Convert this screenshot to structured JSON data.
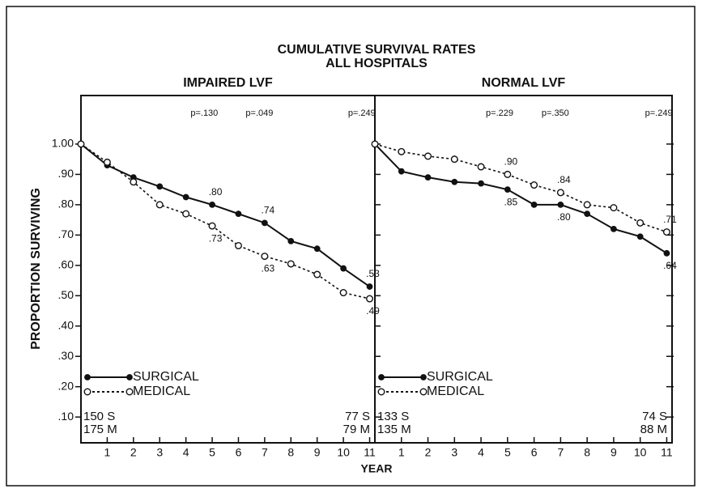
{
  "title": "CUMULATIVE SURVIVAL RATES",
  "subtitle": "ALL HOSPITALS",
  "ylabel": "PROPORTION SURVIVING",
  "xlabel": "YEAR",
  "chart_data": [
    {
      "type": "line",
      "title": "IMPAIRED LVF",
      "x": [
        0,
        1,
        2,
        3,
        4,
        5,
        6,
        7,
        8,
        9,
        10,
        11
      ],
      "xlim": [
        0,
        11.2
      ],
      "xticks": [
        1,
        2,
        3,
        4,
        5,
        6,
        7,
        8,
        9,
        10,
        11
      ],
      "ylim": [
        0.015,
        1.16
      ],
      "yticks": [
        {
          "value": 1.0,
          "label": "1.00"
        },
        {
          "value": 0.9,
          "label": ".90"
        },
        {
          "value": 0.8,
          "label": ".80"
        },
        {
          "value": 0.7,
          "label": ".70"
        },
        {
          "value": 0.6,
          "label": ".60"
        },
        {
          "value": 0.5,
          "label": ".50"
        },
        {
          "value": 0.4,
          "label": ".40"
        },
        {
          "value": 0.3,
          "label": ".30"
        },
        {
          "value": 0.2,
          "label": ".20"
        },
        {
          "value": 0.1,
          "label": ".10"
        }
      ],
      "series": [
        {
          "name": "SURGICAL",
          "color": "#111111",
          "values": [
            1.0,
            0.93,
            0.89,
            0.86,
            0.825,
            0.8,
            0.77,
            0.74,
            0.68,
            0.655,
            0.59,
            0.53
          ],
          "value_labels": [
            null,
            null,
            null,
            null,
            null,
            ".80",
            null,
            ".74",
            null,
            null,
            null,
            ".53"
          ]
        },
        {
          "name": "MEDICAL",
          "color": "#111111",
          "values": [
            1.0,
            0.94,
            0.875,
            0.8,
            0.77,
            0.73,
            0.665,
            0.63,
            0.605,
            0.57,
            0.51,
            0.49
          ],
          "value_labels": [
            null,
            null,
            null,
            null,
            null,
            ".73",
            null,
            ".63",
            null,
            null,
            null,
            ".49"
          ]
        }
      ],
      "annotations": [
        "p=.130",
        "p=.049",
        "p=.249"
      ],
      "n_start": [
        "150 S",
        "175 M"
      ],
      "n_end": [
        "77 S",
        "79 M"
      ]
    },
    {
      "type": "line",
      "title": "NORMAL LVF",
      "x": [
        0,
        1,
        2,
        3,
        4,
        5,
        6,
        7,
        8,
        9,
        10,
        11
      ],
      "xlim": [
        0,
        11.2
      ],
      "xticks": [
        1,
        2,
        3,
        4,
        5,
        6,
        7,
        8,
        9,
        10,
        11
      ],
      "ylim": [
        0.015,
        1.16
      ],
      "yticks": [
        1.0,
        0.9,
        0.8,
        0.7,
        0.6,
        0.5,
        0.4,
        0.3,
        0.2,
        0.1
      ],
      "series": [
        {
          "name": "SURGICAL",
          "color": "#111111",
          "values": [
            1.0,
            0.91,
            0.89,
            0.875,
            0.87,
            0.85,
            0.8,
            0.8,
            0.77,
            0.72,
            0.695,
            0.64
          ],
          "value_labels": [
            null,
            null,
            null,
            null,
            null,
            ".85",
            null,
            ".80",
            null,
            null,
            null,
            ".64"
          ]
        },
        {
          "name": "MEDICAL",
          "color": "#111111",
          "values": [
            1.0,
            0.975,
            0.96,
            0.95,
            0.925,
            0.9,
            0.865,
            0.84,
            0.8,
            0.79,
            0.74,
            0.71
          ],
          "value_labels": [
            null,
            null,
            null,
            null,
            null,
            ".90",
            null,
            ".84",
            null,
            null,
            null,
            ".71"
          ]
        }
      ],
      "annotations": [
        "p=.229",
        "p=.350",
        "p=.249"
      ],
      "n_start": [
        "133 S",
        "135 M"
      ],
      "n_end": [
        "74 S",
        "88 M"
      ]
    }
  ]
}
